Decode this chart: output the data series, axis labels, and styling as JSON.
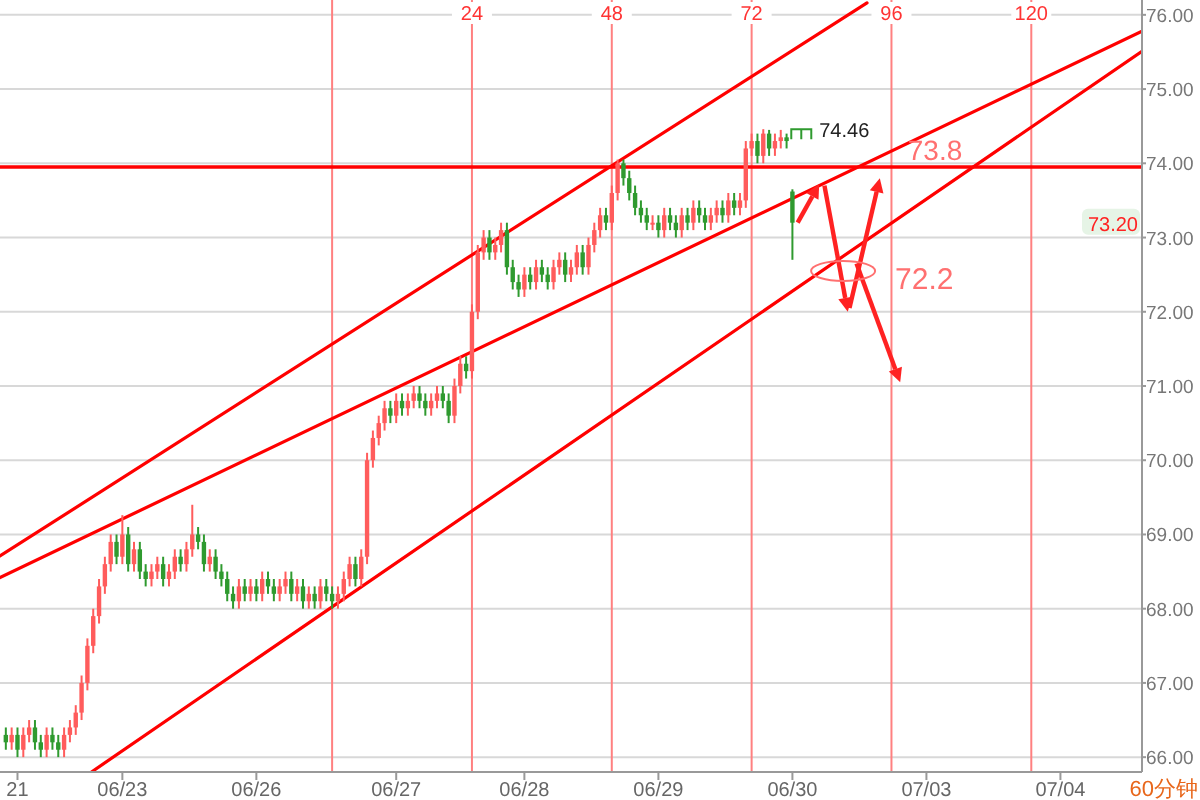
{
  "chart_data": {
    "type": "candlestick",
    "categories": [
      null,
      null,
      null,
      "21",
      null,
      null,
      null,
      null,
      null,
      null,
      null,
      null,
      null,
      null,
      null,
      null,
      null,
      null,
      null,
      null,
      null,
      "06/23",
      null,
      null,
      null,
      null,
      null,
      null,
      null,
      null,
      null,
      null,
      null,
      null,
      null,
      null,
      null,
      null,
      null,
      null,
      null,
      null,
      null,
      null,
      "06/26",
      null,
      null,
      null,
      null,
      null,
      null,
      null,
      null,
      null,
      null,
      null,
      null,
      null,
      null,
      null,
      null,
      null,
      null,
      null,
      null,
      null,
      null,
      null,
      "06/27",
      null,
      null,
      null,
      null,
      null,
      null,
      null,
      null,
      null,
      null,
      null,
      null,
      null,
      null,
      null,
      null,
      null,
      null,
      null,
      null,
      null,
      "06/28",
      null,
      null,
      null,
      null,
      null,
      null,
      null,
      null,
      null,
      null,
      null,
      null,
      null,
      null,
      null,
      null,
      null,
      null,
      null,
      null,
      null,
      null,
      "06/29",
      null,
      null,
      null,
      null,
      null,
      null,
      null,
      null,
      null,
      null,
      null,
      null,
      null,
      null,
      null,
      null,
      null,
      null,
      null,
      null,
      null,
      null,
      "06/30",
      null,
      null,
      null,
      null,
      null,
      null,
      null,
      null,
      null,
      null,
      null,
      null,
      null,
      null,
      null,
      null,
      null,
      null,
      null,
      null,
      null,
      null,
      "07/03",
      null,
      null,
      null,
      null,
      null,
      null,
      null,
      null,
      null,
      null,
      null,
      null,
      null,
      null,
      null,
      null,
      null,
      null,
      null,
      null,
      null,
      null,
      "07/04",
      null,
      null,
      null,
      null,
      null,
      null,
      null,
      null,
      null,
      null,
      null,
      null,
      null,
      null
    ],
    "x2lim": [
      -57,
      139
    ],
    "x2ticks": [
      {
        "value": 0,
        "label": null
      },
      24,
      48,
      72,
      96,
      120
    ],
    "ylim": [
      65.8,
      76.2
    ],
    "yticks": [
      {
        "value": 66,
        "label": "66.00"
      },
      {
        "value": 67,
        "label": "67.00"
      },
      {
        "value": 68,
        "label": "68.00"
      },
      {
        "value": 69,
        "label": "69.00"
      },
      {
        "value": 70,
        "label": "70.00"
      },
      {
        "value": 71,
        "label": "71.00"
      },
      {
        "value": 72,
        "label": "72.00"
      },
      {
        "value": 73,
        "label": "73.00"
      },
      {
        "value": 74,
        "label": "74.00"
      },
      {
        "value": 75,
        "label": "75.00"
      },
      {
        "value": 76,
        "label": "76.00"
      }
    ],
    "grid": true,
    "ohlc": [
      null,
      [
        66.3,
        66.4,
        66.1,
        66.2
      ],
      [
        66.2,
        66.4,
        66.1,
        66.3
      ],
      [
        66.3,
        66.4,
        66.0,
        66.1
      ],
      [
        66.1,
        66.4,
        66.0,
        66.3
      ],
      [
        66.3,
        66.5,
        66.2,
        66.4
      ],
      [
        66.4,
        66.5,
        66.1,
        66.2
      ],
      [
        66.2,
        66.3,
        66.0,
        66.1
      ],
      [
        66.1,
        66.4,
        66.0,
        66.3
      ],
      [
        66.3,
        66.4,
        66.1,
        66.2
      ],
      [
        66.2,
        66.3,
        66.0,
        66.1
      ],
      [
        66.1,
        66.4,
        66.0,
        66.3
      ],
      [
        66.3,
        66.5,
        66.2,
        66.4
      ],
      [
        66.4,
        66.7,
        66.3,
        66.6
      ],
      [
        66.6,
        67.1,
        66.5,
        67.0
      ],
      [
        67.0,
        67.6,
        66.9,
        67.5
      ],
      [
        67.5,
        68.0,
        67.4,
        67.9
      ],
      [
        67.9,
        68.4,
        67.8,
        68.3
      ],
      [
        68.3,
        68.7,
        68.2,
        68.6
      ],
      [
        68.6,
        69.0,
        68.5,
        68.9
      ],
      [
        68.9,
        69.0,
        68.6,
        68.7
      ],
      [
        68.7,
        69.26,
        68.6,
        69.0
      ],
      [
        69.0,
        69.1,
        68.5,
        68.6
      ],
      [
        68.6,
        68.9,
        68.5,
        68.8
      ],
      [
        68.8,
        68.9,
        68.4,
        68.5
      ],
      [
        68.5,
        68.6,
        68.3,
        68.4
      ],
      [
        68.4,
        68.6,
        68.3,
        68.5
      ],
      [
        68.5,
        68.7,
        68.4,
        68.6
      ],
      [
        68.6,
        68.7,
        68.3,
        68.4
      ],
      [
        68.4,
        68.6,
        68.3,
        68.5
      ],
      [
        68.5,
        68.8,
        68.4,
        68.7
      ],
      [
        68.7,
        68.8,
        68.5,
        68.6
      ],
      [
        68.6,
        68.9,
        68.5,
        68.8
      ],
      [
        68.8,
        69.4,
        68.7,
        69.0
      ],
      [
        69.0,
        69.1,
        68.8,
        68.9
      ],
      [
        68.9,
        69.0,
        68.5,
        68.6
      ],
      [
        68.6,
        68.8,
        68.5,
        68.7
      ],
      [
        68.7,
        68.8,
        68.4,
        68.5
      ],
      [
        68.5,
        68.6,
        68.3,
        68.4
      ],
      [
        68.4,
        68.5,
        68.1,
        68.2
      ],
      [
        68.2,
        68.3,
        68.0,
        68.1
      ],
      [
        68.1,
        68.4,
        68.0,
        68.3
      ],
      [
        68.3,
        68.4,
        68.1,
        68.2
      ],
      [
        68.2,
        68.4,
        68.1,
        68.3
      ],
      [
        68.3,
        68.4,
        68.1,
        68.2
      ],
      [
        68.2,
        68.5,
        68.1,
        68.4
      ],
      [
        68.4,
        68.5,
        68.2,
        68.3
      ],
      [
        68.3,
        68.4,
        68.1,
        68.2
      ],
      [
        68.2,
        68.4,
        68.1,
        68.3
      ],
      [
        68.3,
        68.5,
        68.2,
        68.4
      ],
      [
        68.4,
        68.5,
        68.1,
        68.2
      ],
      [
        68.2,
        68.4,
        68.1,
        68.3
      ],
      [
        68.3,
        68.4,
        68.0,
        68.1
      ],
      [
        68.1,
        68.3,
        68.0,
        68.2
      ],
      [
        68.2,
        68.3,
        68.0,
        68.1
      ],
      [
        68.1,
        68.4,
        68.0,
        68.3
      ],
      [
        68.3,
        68.4,
        68.1,
        68.2
      ],
      [
        68.2,
        68.3,
        68.0,
        68.1
      ],
      [
        68.1,
        68.3,
        68.0,
        68.2
      ],
      [
        68.2,
        68.5,
        68.1,
        68.4
      ],
      [
        68.4,
        68.7,
        68.3,
        68.6
      ],
      [
        68.6,
        68.7,
        68.3,
        68.4
      ],
      [
        68.4,
        68.8,
        68.3,
        68.7
      ],
      [
        68.7,
        70.1,
        68.6,
        70.0
      ],
      [
        70.0,
        70.4,
        69.9,
        70.3
      ],
      [
        70.3,
        70.6,
        70.2,
        70.5
      ],
      [
        70.5,
        70.8,
        70.4,
        70.7
      ],
      [
        70.7,
        70.8,
        70.5,
        70.6
      ],
      [
        70.6,
        70.9,
        70.5,
        70.8
      ],
      [
        70.8,
        70.9,
        70.6,
        70.7
      ],
      [
        70.7,
        70.9,
        70.6,
        70.8
      ],
      [
        70.8,
        71.0,
        70.7,
        70.9
      ],
      [
        70.9,
        71.0,
        70.7,
        70.8
      ],
      [
        70.8,
        70.9,
        70.6,
        70.7
      ],
      [
        70.7,
        70.9,
        70.6,
        70.8
      ],
      [
        70.8,
        71.0,
        70.7,
        70.9
      ],
      [
        70.9,
        71.0,
        70.7,
        70.8
      ],
      [
        70.8,
        70.9,
        70.5,
        70.6
      ],
      [
        70.6,
        71.1,
        70.5,
        71.0
      ],
      [
        71.0,
        71.4,
        70.9,
        71.3
      ],
      [
        71.3,
        71.4,
        71.1,
        71.2
      ],
      [
        71.2,
        72.1,
        71.1,
        72.0
      ],
      [
        72.0,
        72.9,
        71.9,
        72.8
      ],
      [
        72.8,
        73.1,
        72.7,
        73.0
      ],
      [
        73.0,
        73.1,
        72.7,
        72.8
      ],
      [
        72.8,
        73.0,
        72.7,
        72.9
      ],
      [
        72.9,
        73.2,
        72.8,
        73.1
      ],
      [
        73.1,
        73.2,
        72.5,
        72.6
      ],
      [
        72.6,
        72.7,
        72.3,
        72.4
      ],
      [
        72.4,
        72.5,
        72.2,
        72.3
      ],
      [
        72.3,
        72.6,
        72.2,
        72.5
      ],
      [
        72.5,
        72.6,
        72.3,
        72.4
      ],
      [
        72.4,
        72.7,
        72.3,
        72.6
      ],
      [
        72.6,
        72.7,
        72.4,
        72.5
      ],
      [
        72.5,
        72.6,
        72.3,
        72.4
      ],
      [
        72.4,
        72.7,
        72.3,
        72.6
      ],
      [
        72.6,
        72.8,
        72.5,
        72.7
      ],
      [
        72.7,
        72.8,
        72.4,
        72.5
      ],
      [
        72.5,
        72.7,
        72.4,
        72.6
      ],
      [
        72.6,
        72.9,
        72.5,
        72.8
      ],
      [
        72.8,
        72.9,
        72.5,
        72.6
      ],
      [
        72.6,
        73.0,
        72.5,
        72.9
      ],
      [
        72.9,
        73.2,
        72.8,
        73.1
      ],
      [
        73.1,
        73.4,
        73.0,
        73.3
      ],
      [
        73.3,
        73.4,
        73.1,
        73.2
      ],
      [
        73.2,
        73.7,
        73.1,
        73.6
      ],
      [
        73.6,
        74.05,
        73.5,
        74.0
      ],
      [
        74.0,
        74.05,
        73.7,
        73.8
      ],
      [
        73.8,
        73.9,
        73.5,
        73.6
      ],
      [
        73.6,
        73.7,
        73.3,
        73.4
      ],
      [
        73.4,
        73.5,
        73.2,
        73.3
      ],
      [
        73.3,
        73.4,
        73.1,
        73.2
      ],
      [
        73.2,
        73.3,
        73.1,
        73.2
      ],
      [
        73.2,
        73.3,
        73.0,
        73.1
      ],
      [
        73.1,
        73.4,
        73.0,
        73.3
      ],
      [
        73.3,
        73.4,
        73.1,
        73.2
      ],
      [
        73.2,
        73.3,
        73.0,
        73.1
      ],
      [
        73.1,
        73.4,
        73.0,
        73.3
      ],
      [
        73.3,
        73.4,
        73.1,
        73.2
      ],
      [
        73.2,
        73.5,
        73.1,
        73.4
      ],
      [
        73.4,
        73.5,
        73.2,
        73.3
      ],
      [
        73.3,
        73.4,
        73.1,
        73.2
      ],
      [
        73.2,
        73.4,
        73.1,
        73.3
      ],
      [
        73.3,
        73.5,
        73.2,
        73.4
      ],
      [
        73.4,
        73.5,
        73.2,
        73.3
      ],
      [
        73.3,
        73.6,
        73.2,
        73.5
      ],
      [
        73.5,
        73.6,
        73.3,
        73.4
      ],
      [
        73.4,
        73.6,
        73.3,
        73.5
      ],
      [
        73.5,
        74.3,
        73.4,
        74.2
      ],
      [
        74.2,
        74.4,
        74.1,
        74.3
      ],
      [
        74.3,
        74.4,
        74.0,
        74.1
      ],
      [
        74.1,
        74.46,
        74.0,
        74.4
      ],
      [
        74.4,
        74.45,
        74.1,
        74.2
      ],
      [
        74.2,
        74.4,
        74.1,
        74.3
      ],
      [
        74.3,
        74.45,
        74.2,
        74.35
      ],
      [
        74.35,
        74.4,
        74.2,
        74.3
      ],
      [
        73.62,
        73.65,
        72.7,
        73.2
      ],
      null,
      null,
      null,
      null,
      null,
      null,
      null,
      null,
      null,
      null,
      null,
      null,
      null,
      null,
      null,
      null,
      null,
      null,
      null,
      null,
      null,
      null,
      null,
      null,
      null,
      null,
      null,
      null,
      null,
      null,
      null,
      null,
      null,
      null,
      null,
      null,
      null,
      null,
      null,
      null,
      null,
      null,
      null,
      null,
      null,
      null,
      null,
      null,
      null,
      null,
      null,
      null,
      null,
      null,
      null,
      null,
      null,
      null,
      null,
      null
    ],
    "colors": [
      null,
      "#2f9a2f",
      "#ff5c5c",
      "#2f9a2f",
      "#ff5c5c",
      "#ff5c5c",
      "#2f9a2f",
      "#2f9a2f",
      "#ff5c5c",
      "#2f9a2f",
      "#2f9a2f",
      "#ff5c5c",
      "#ff5c5c",
      "#ff5c5c",
      "#ff5c5c",
      "#ff5c5c",
      "#ff5c5c",
      "#ff5c5c",
      "#ff5c5c",
      "#ff5c5c",
      "#2f9a2f",
      "#ff5c5c",
      "#2f9a2f",
      "#ff5c5c",
      "#2f9a2f",
      "#2f9a2f",
      "#ff5c5c",
      "#ff5c5c",
      "#2f9a2f",
      "#ff5c5c",
      "#ff5c5c",
      "#2f9a2f",
      "#ff5c5c",
      "#ff5c5c",
      "#2f9a2f",
      "#2f9a2f",
      "#ff5c5c",
      "#2f9a2f",
      "#2f9a2f",
      "#2f9a2f",
      "#2f9a2f",
      "#ff5c5c",
      "#2f9a2f",
      "#ff5c5c",
      "#2f9a2f",
      "#ff5c5c",
      "#2f9a2f",
      "#2f9a2f",
      "#ff5c5c",
      "#ff5c5c",
      "#2f9a2f",
      "#ff5c5c",
      "#2f9a2f",
      "#ff5c5c",
      "#2f9a2f",
      "#ff5c5c",
      "#2f9a2f",
      "#2f9a2f",
      "#ff5c5c",
      "#ff5c5c",
      "#ff5c5c",
      "#2f9a2f",
      "#ff5c5c",
      "#ff5c5c",
      "#ff5c5c",
      "#ff5c5c",
      "#ff5c5c",
      "#2f9a2f",
      "#ff5c5c",
      "#2f9a2f",
      "#ff5c5c",
      "#ff5c5c",
      "#2f9a2f",
      "#2f9a2f",
      "#ff5c5c",
      "#ff5c5c",
      "#2f9a2f",
      "#2f9a2f",
      "#ff5c5c",
      "#ff5c5c",
      "#2f9a2f",
      "#ff5c5c",
      "#ff5c5c",
      "#ff5c5c",
      "#2f9a2f",
      "#ff5c5c",
      "#ff5c5c",
      "#2f9a2f",
      "#2f9a2f",
      "#2f9a2f",
      "#ff5c5c",
      "#2f9a2f",
      "#ff5c5c",
      "#2f9a2f",
      "#2f9a2f",
      "#ff5c5c",
      "#ff5c5c",
      "#2f9a2f",
      "#ff5c5c",
      "#ff5c5c",
      "#2f9a2f",
      "#ff5c5c",
      "#ff5c5c",
      "#ff5c5c",
      "#2f9a2f",
      "#ff5c5c",
      "#ff5c5c",
      "#2f9a2f",
      "#2f9a2f",
      "#2f9a2f",
      "#2f9a2f",
      "#2f9a2f",
      "#ff5c5c",
      "#2f9a2f",
      "#ff5c5c",
      "#2f9a2f",
      "#2f9a2f",
      "#ff5c5c",
      "#2f9a2f",
      "#ff5c5c",
      "#2f9a2f",
      "#2f9a2f",
      "#ff5c5c",
      "#ff5c5c",
      "#2f9a2f",
      "#ff5c5c",
      "#2f9a2f",
      "#ff5c5c",
      "#ff5c5c",
      "#ff5c5c",
      "#2f9a2f",
      "#ff5c5c",
      "#2f9a2f",
      "#ff5c5c",
      "#ff5c5c",
      "#2f9a2f",
      "#2f9a2f",
      null,
      null,
      null,
      null,
      null,
      null,
      null,
      null,
      null,
      null,
      null,
      null,
      null,
      null,
      null,
      null,
      null,
      null,
      null,
      null,
      null,
      null,
      null,
      null,
      null,
      null,
      null,
      null,
      null,
      null,
      null,
      null,
      null,
      null,
      null,
      null,
      null,
      null,
      null,
      null,
      null,
      null,
      null,
      null,
      null,
      null,
      null,
      null,
      null,
      null,
      null,
      null,
      null,
      null,
      null,
      null,
      null,
      null,
      null,
      null
    ],
    "series": [
      {
        "type": "line",
        "color": "#ff0000",
        "axis": "x2",
        "x": [
          -57,
          91.8
        ],
        "values": [
          68.71,
          76.16
        ]
      },
      {
        "type": "line",
        "color": "#ff0000",
        "axis": "x2",
        "x": [
          -57,
          139
        ],
        "values": [
          68.42,
          75.78
        ]
      },
      {
        "type": "line",
        "color": "#ff0000",
        "axis": "x2",
        "x": [
          -41.3,
          139
        ],
        "values": [
          65.8,
          75.51
        ]
      }
    ],
    "ref_lines": [
      {
        "axis": "y",
        "value": 73.95,
        "color": "#ff0000"
      }
    ],
    "annotations": [
      "74.46",
      "73.8",
      "72.2",
      {
        "text": "73.20",
        "y": 73.2
      },
      "60分钟"
    ]
  }
}
